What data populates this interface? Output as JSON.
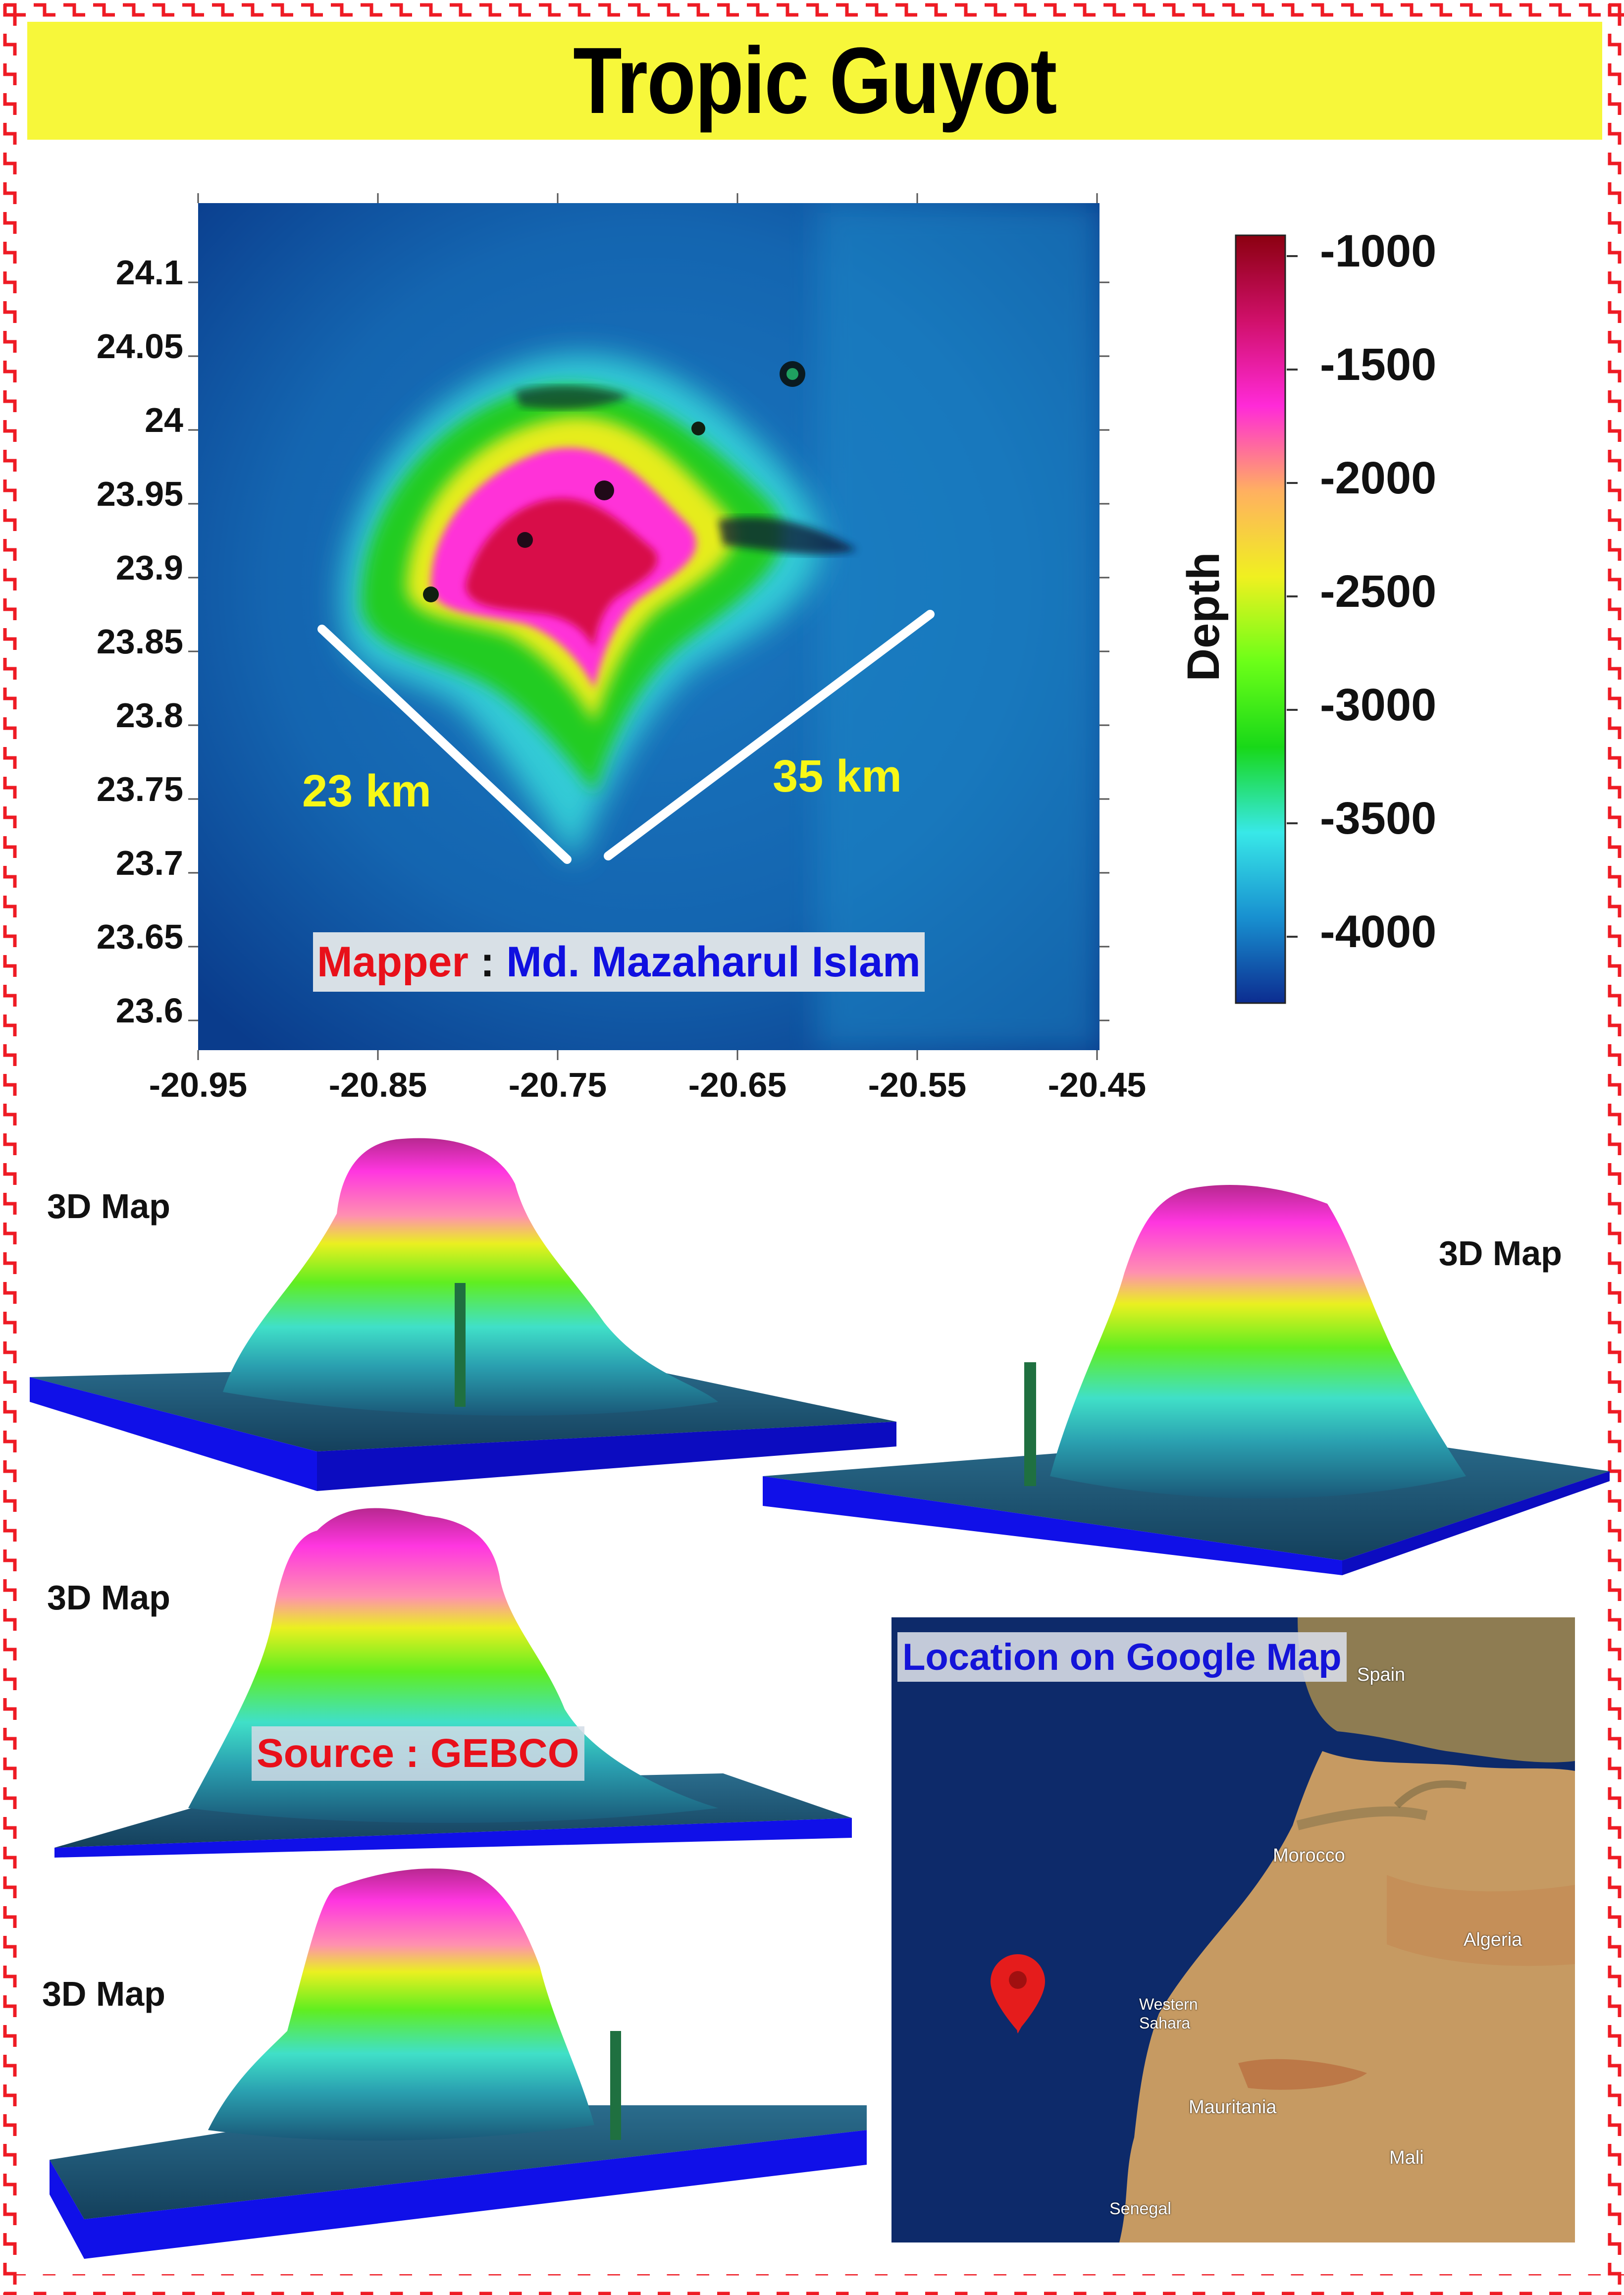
{
  "title": "Tropic Guyot",
  "map": {
    "y_ticks": [
      "24.1",
      "24.05",
      "24",
      "23.95",
      "23.9",
      "23.85",
      "23.8",
      "23.75",
      "23.7",
      "23.65",
      "23.6"
    ],
    "x_ticks": [
      "-20.95",
      "-20.85",
      "-20.75",
      "-20.65",
      "-20.55",
      "-20.45"
    ],
    "annotation_left": "23 km",
    "annotation_right": "35 km",
    "mapper_prefix": "Mapper",
    "mapper_sep": " : ",
    "mapper_name": "Md. Mazaharul Islam"
  },
  "colorbar": {
    "label": "Depth",
    "ticks": [
      "-1000",
      "-1500",
      "-2000",
      "-2500",
      "-3000",
      "-3500",
      "-4000"
    ],
    "colors": [
      "#8b0010",
      "#d0106a",
      "#ff2ad8",
      "#ffb060",
      "#f0f020",
      "#6cff18",
      "#18d818",
      "#38e8e8",
      "#1890d0",
      "#0c2c90"
    ]
  },
  "views_3d": [
    {
      "label": "3D Map"
    },
    {
      "label": "3D Map"
    },
    {
      "label": "3D Map"
    },
    {
      "label": "3D Map"
    }
  ],
  "source_label": "Source : GEBCO",
  "location": {
    "title": "Location on Google Map",
    "places": [
      "Spain",
      "Morocco",
      "Algeria",
      "Western Sahara",
      "Mauritania",
      "Mali",
      "Senegal"
    ]
  }
}
